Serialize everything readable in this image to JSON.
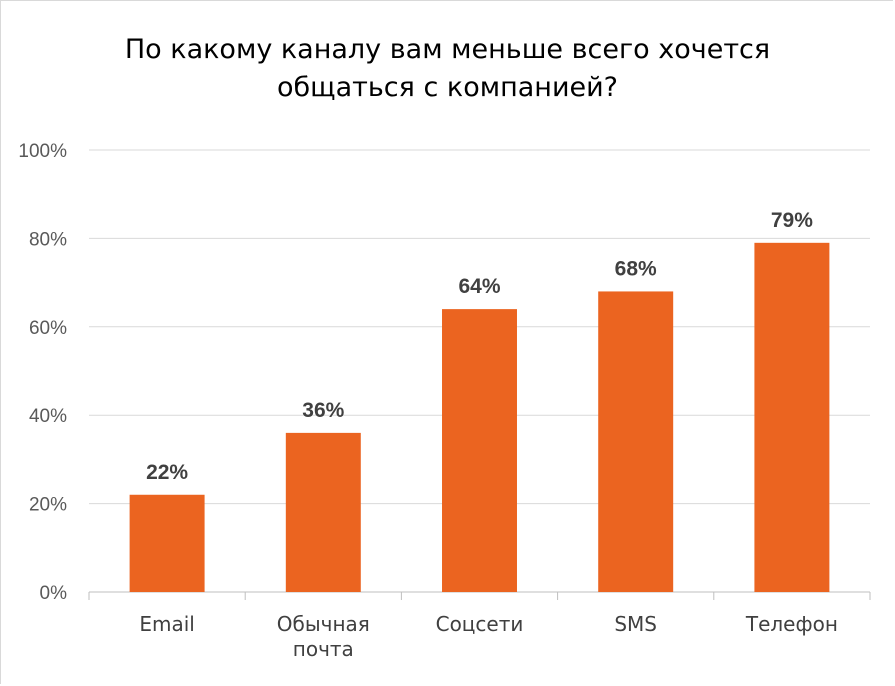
{
  "chart_data": {
    "type": "bar",
    "title_lines": [
      "По какому каналу вам меньше всего хочется",
      "общаться с компанией?"
    ],
    "categories": [
      [
        "Email"
      ],
      [
        "Обычная",
        "почта"
      ],
      [
        "Соцсети"
      ],
      [
        "SMS"
      ],
      [
        "Телефон"
      ]
    ],
    "values": [
      22,
      36,
      64,
      68,
      79
    ],
    "value_labels": [
      "22%",
      "36%",
      "64%",
      "68%",
      "79%"
    ],
    "yticks": [
      "0%",
      "20%",
      "40%",
      "60%",
      "80%",
      "100%"
    ],
    "ylim": [
      0,
      100
    ],
    "grid": true,
    "bar_color": "#EB6420"
  }
}
